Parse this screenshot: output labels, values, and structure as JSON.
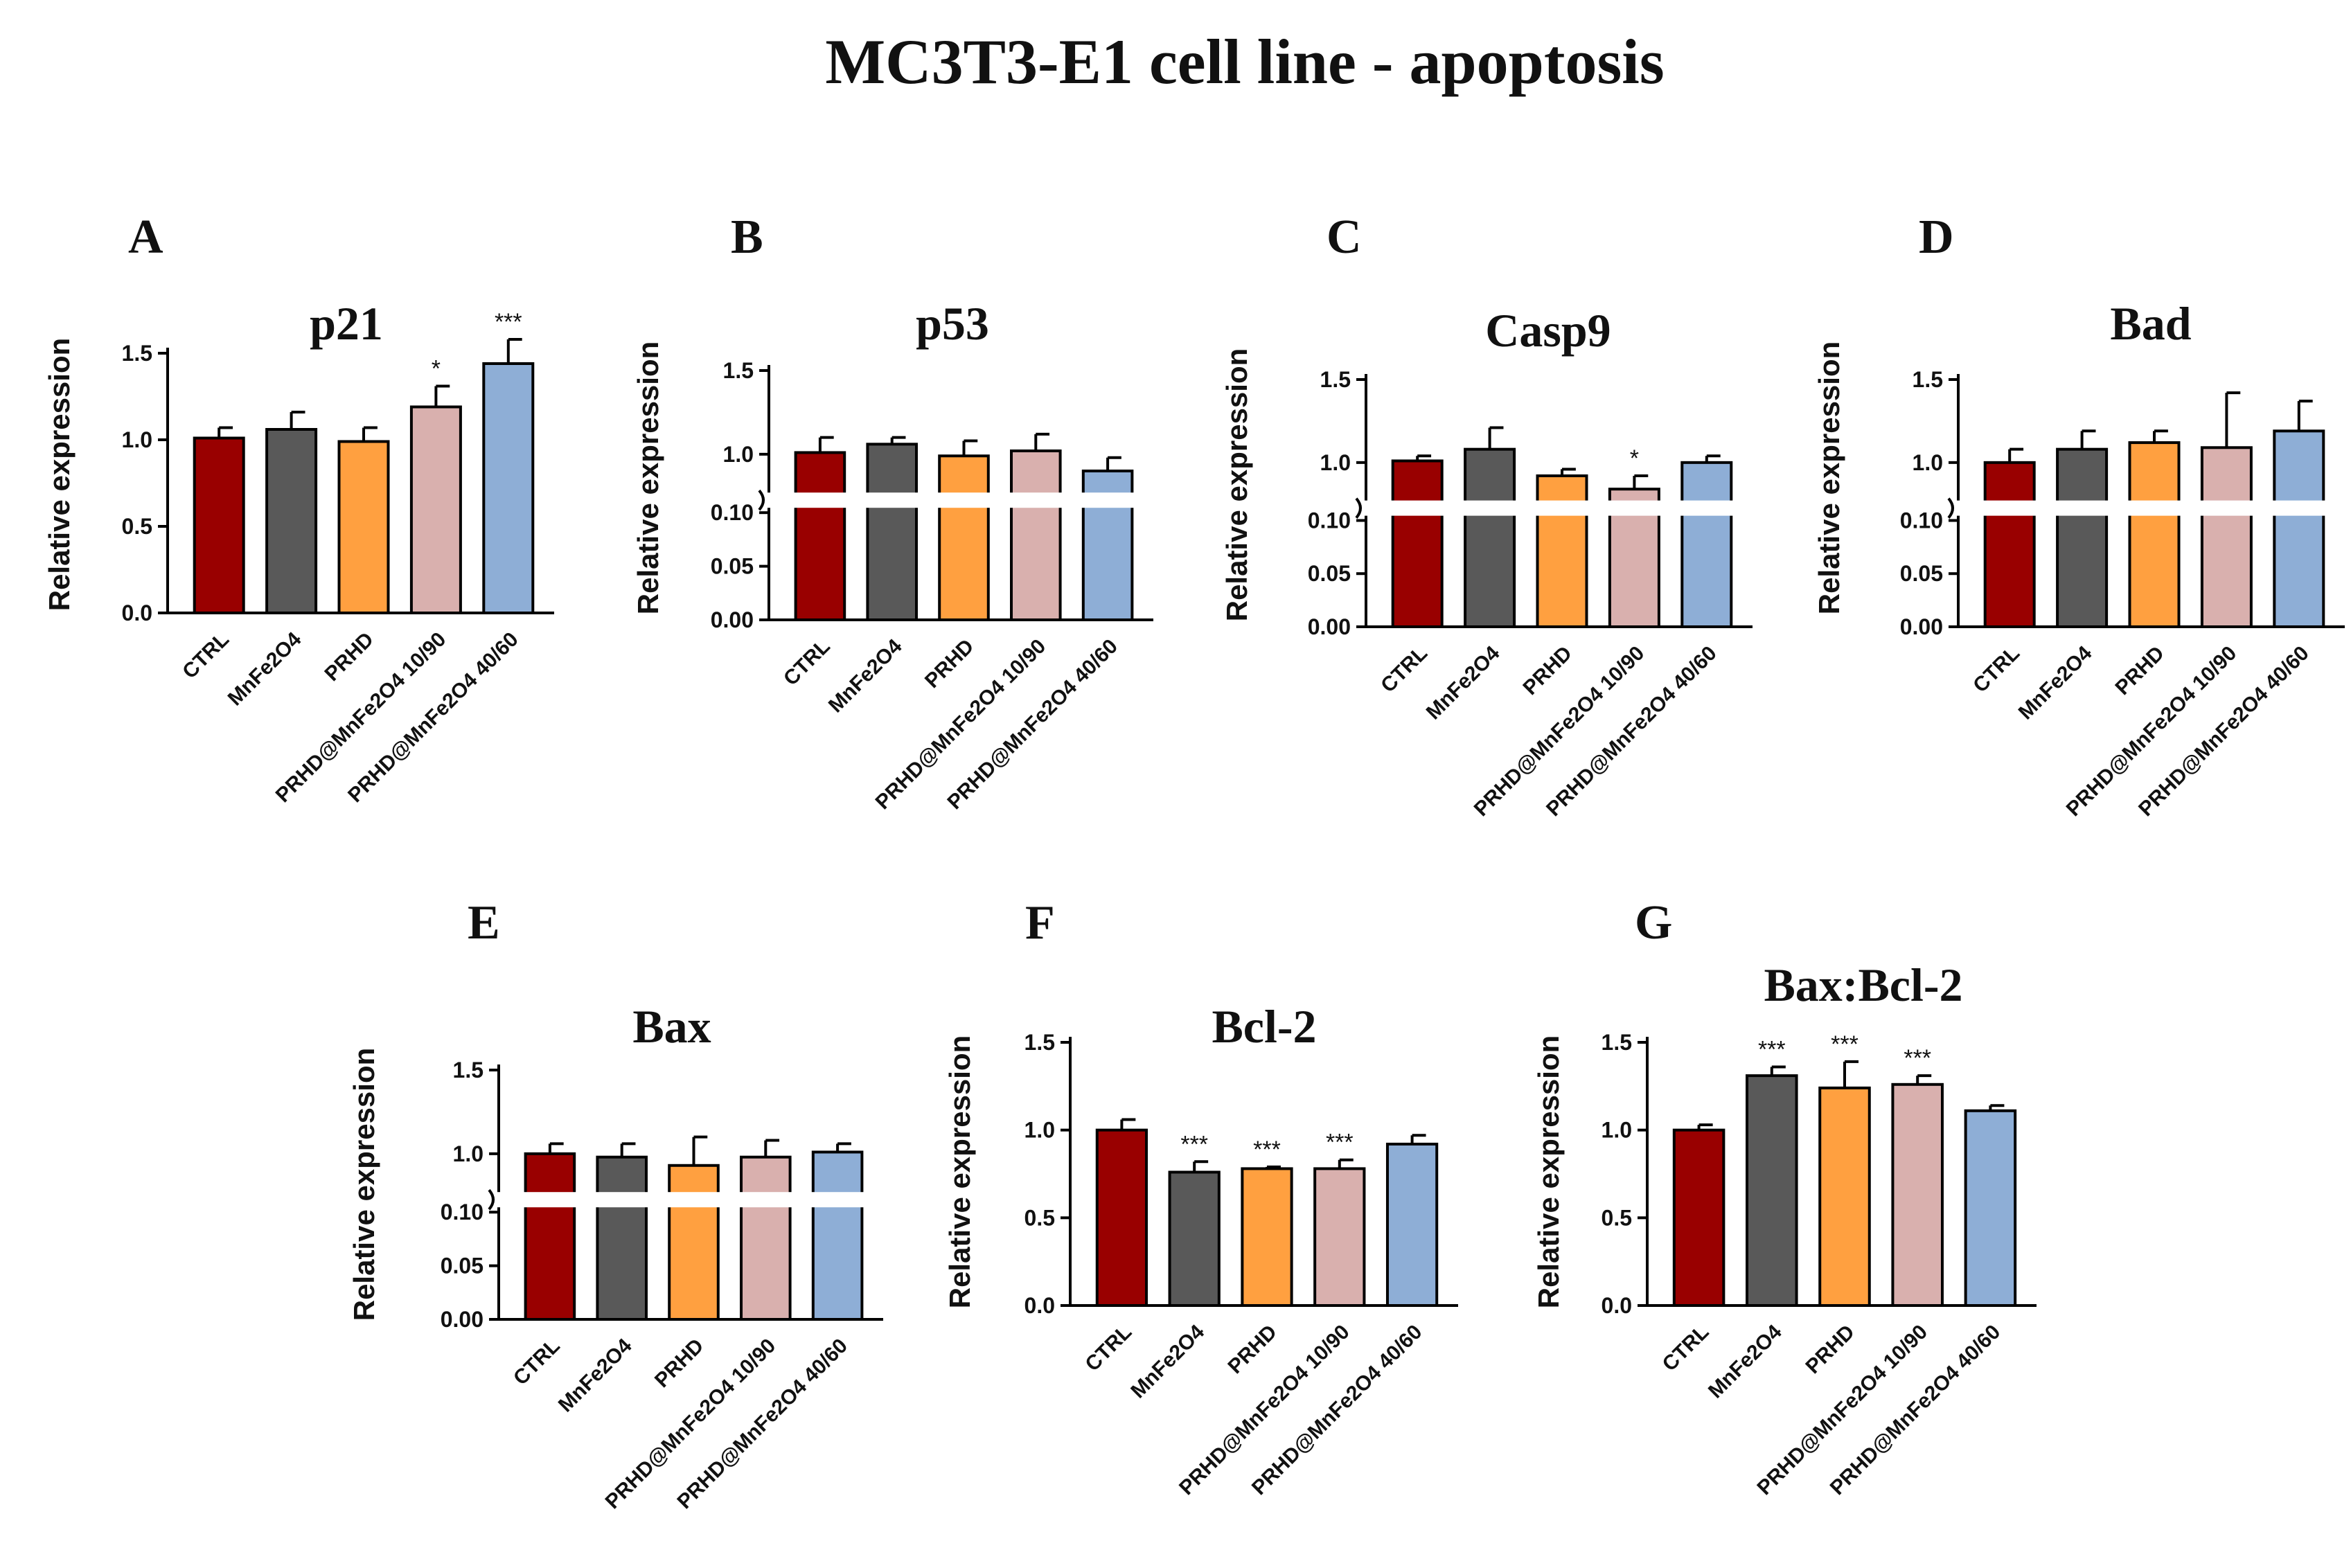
{
  "title": "MC3T3-E1 cell line - apoptosis",
  "colors": {
    "CTRL": "#990000",
    "MnFe2O4": "#595959",
    "PRHD": "#FFA040",
    "PRHD@MnFe2O4 10/90": "#D9B0AE",
    "PRHD@MnFe2O4 40/60": "#8EAED6"
  },
  "chart_data": [
    {
      "panel": "A",
      "type": "bar",
      "title": "p21",
      "ylabel": "Relative expression",
      "categories": [
        "CTRL",
        "MnFe2O4",
        "PRHD",
        "PRHD@MnFe2O4 10/90",
        "PRHD@MnFe2O4 40/60"
      ],
      "values": [
        1.01,
        1.06,
        0.99,
        1.19,
        1.44
      ],
      "errors": [
        0.06,
        0.1,
        0.08,
        0.12,
        0.14
      ],
      "significance": [
        "",
        "",
        "",
        "*",
        "***"
      ],
      "ylim": [
        0,
        1.5
      ],
      "yticks": [
        "0.0",
        "0.5",
        "1.0",
        "1.5"
      ],
      "broken_axis": false
    },
    {
      "panel": "B",
      "type": "bar",
      "title": "p53",
      "ylabel": "Relative expression",
      "categories": [
        "CTRL",
        "MnFe2O4",
        "PRHD",
        "PRHD@MnFe2O4 10/90",
        "PRHD@MnFe2O4 40/60"
      ],
      "values": [
        1.01,
        1.06,
        0.99,
        1.02,
        0.9
      ],
      "errors": [
        0.09,
        0.04,
        0.09,
        0.1,
        0.08
      ],
      "significance": [
        "",
        "",
        "",
        "",
        ""
      ],
      "broken_axis": true,
      "ylim_lower": [
        0,
        0.1
      ],
      "ylim_upper": [
        0.8,
        1.5
      ],
      "yticks_lower": [
        "0.00",
        "0.05",
        "0.10"
      ],
      "yticks_upper": [
        "1.0",
        "1.5"
      ]
    },
    {
      "panel": "C",
      "type": "bar",
      "title": "Casp9",
      "ylabel": "Relative expression",
      "categories": [
        "CTRL",
        "MnFe2O4",
        "PRHD",
        "PRHD@MnFe2O4 10/90",
        "PRHD@MnFe2O4 40/60"
      ],
      "values": [
        1.01,
        1.08,
        0.92,
        0.84,
        1.0
      ],
      "errors": [
        0.03,
        0.13,
        0.04,
        0.08,
        0.04
      ],
      "significance": [
        "",
        "",
        "",
        "*",
        ""
      ],
      "broken_axis": true,
      "ylim_lower": [
        0,
        0.1
      ],
      "ylim_upper": [
        0.8,
        1.5
      ],
      "yticks_lower": [
        "0.00",
        "0.05",
        "0.10"
      ],
      "yticks_upper": [
        "1.0",
        "1.5"
      ]
    },
    {
      "panel": "D",
      "type": "bar",
      "title": "Bad",
      "ylabel": "Relative expression",
      "categories": [
        "CTRL",
        "MnFe2O4",
        "PRHD",
        "PRHD@MnFe2O4 10/90",
        "PRHD@MnFe2O4 40/60"
      ],
      "values": [
        1.0,
        1.08,
        1.12,
        1.09,
        1.19
      ],
      "errors": [
        0.08,
        0.11,
        0.07,
        0.33,
        0.18
      ],
      "significance": [
        "",
        "",
        "",
        "",
        ""
      ],
      "broken_axis": true,
      "ylim_lower": [
        0,
        0.1
      ],
      "ylim_upper": [
        0.8,
        1.5
      ],
      "yticks_lower": [
        "0.00",
        "0.05",
        "0.10"
      ],
      "yticks_upper": [
        "1.0",
        "1.5"
      ]
    },
    {
      "panel": "E",
      "type": "bar",
      "title": "Bax",
      "ylabel": "Relative expression",
      "categories": [
        "CTRL",
        "MnFe2O4",
        "PRHD",
        "PRHD@MnFe2O4 10/90",
        "PRHD@MnFe2O4 40/60"
      ],
      "values": [
        1.0,
        0.98,
        0.93,
        0.98,
        1.01
      ],
      "errors": [
        0.06,
        0.08,
        0.17,
        0.1,
        0.05
      ],
      "significance": [
        "",
        "",
        "",
        "",
        ""
      ],
      "broken_axis": true,
      "ylim_lower": [
        0,
        0.1
      ],
      "ylim_upper": [
        0.8,
        1.5
      ],
      "yticks_lower": [
        "0.00",
        "0.05",
        "0.10"
      ],
      "yticks_upper": [
        "1.0",
        "1.5"
      ]
    },
    {
      "panel": "F",
      "type": "bar",
      "title": "Bcl-2",
      "ylabel": "Relative expression",
      "categories": [
        "CTRL",
        "MnFe2O4",
        "PRHD",
        "PRHD@MnFe2O4 10/90",
        "PRHD@MnFe2O4 40/60"
      ],
      "values": [
        1.0,
        0.76,
        0.78,
        0.78,
        0.92
      ],
      "errors": [
        0.06,
        0.06,
        0.01,
        0.05,
        0.05
      ],
      "significance": [
        "",
        "***",
        "***",
        "***",
        ""
      ],
      "ylim": [
        0,
        1.5
      ],
      "yticks": [
        "0.0",
        "0.5",
        "1.0",
        "1.5"
      ],
      "broken_axis": false
    },
    {
      "panel": "G",
      "type": "bar",
      "title": "Bax:Bcl-2",
      "ylabel": "Relative expression",
      "categories": [
        "CTRL",
        "MnFe2O4",
        "PRHD",
        "PRHD@MnFe2O4 10/90",
        "PRHD@MnFe2O4 40/60"
      ],
      "values": [
        1.0,
        1.31,
        1.24,
        1.26,
        1.11
      ],
      "errors": [
        0.03,
        0.05,
        0.15,
        0.05,
        0.03
      ],
      "significance": [
        "",
        "***",
        "***",
        "***",
        ""
      ],
      "ylim": [
        0,
        1.5
      ],
      "yticks": [
        "0.0",
        "0.5",
        "1.0",
        "1.5"
      ],
      "broken_axis": false
    }
  ]
}
